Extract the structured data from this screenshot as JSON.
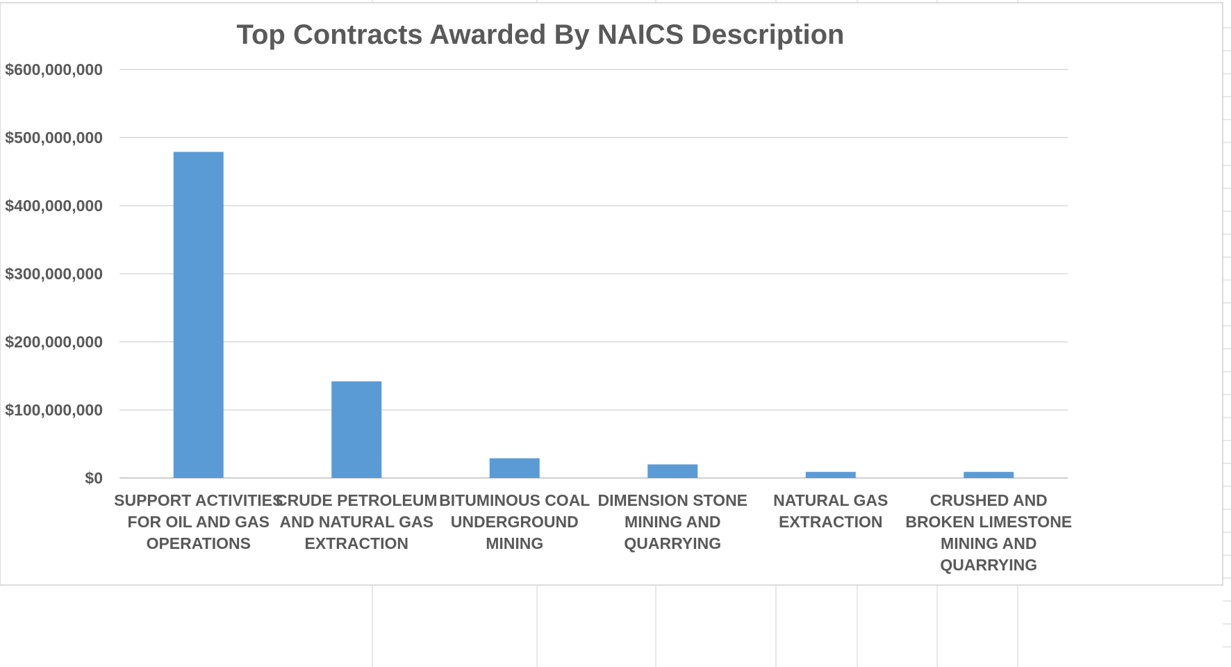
{
  "chart_data": {
    "type": "bar",
    "title": "Top Contracts Awarded By NAICS Description",
    "xlabel": "",
    "ylabel": "",
    "categories": [
      [
        "SUPPORT ACTIVITIES",
        "FOR OIL AND GAS",
        "OPERATIONS"
      ],
      [
        "CRUDE PETROLEUM",
        "AND NATURAL GAS",
        "EXTRACTION"
      ],
      [
        "BITUMINOUS COAL",
        "UNDERGROUND",
        "MINING"
      ],
      [
        "DIMENSION STONE",
        "MINING AND",
        "QUARRYING"
      ],
      [
        "NATURAL GAS",
        "EXTRACTION"
      ],
      [
        "CRUSHED AND",
        "BROKEN LIMESTONE",
        "MINING AND",
        "QUARRYING"
      ]
    ],
    "values": [
      479000000,
      142000000,
      29000000,
      20000000,
      9000000,
      9000000
    ],
    "ylim": [
      0,
      600000000
    ],
    "yticks": [
      0,
      100000000,
      200000000,
      300000000,
      400000000,
      500000000,
      600000000
    ],
    "ytick_labels": [
      "$0",
      "$100,000,000",
      "$200,000,000",
      "$300,000,000",
      "$400,000,000",
      "$500,000,000",
      "$600,000,000"
    ],
    "grid": true,
    "legend": "none",
    "colors": {
      "bar": "#5b9bd5",
      "text": "#595959",
      "grid": "#d9d9d9"
    }
  }
}
